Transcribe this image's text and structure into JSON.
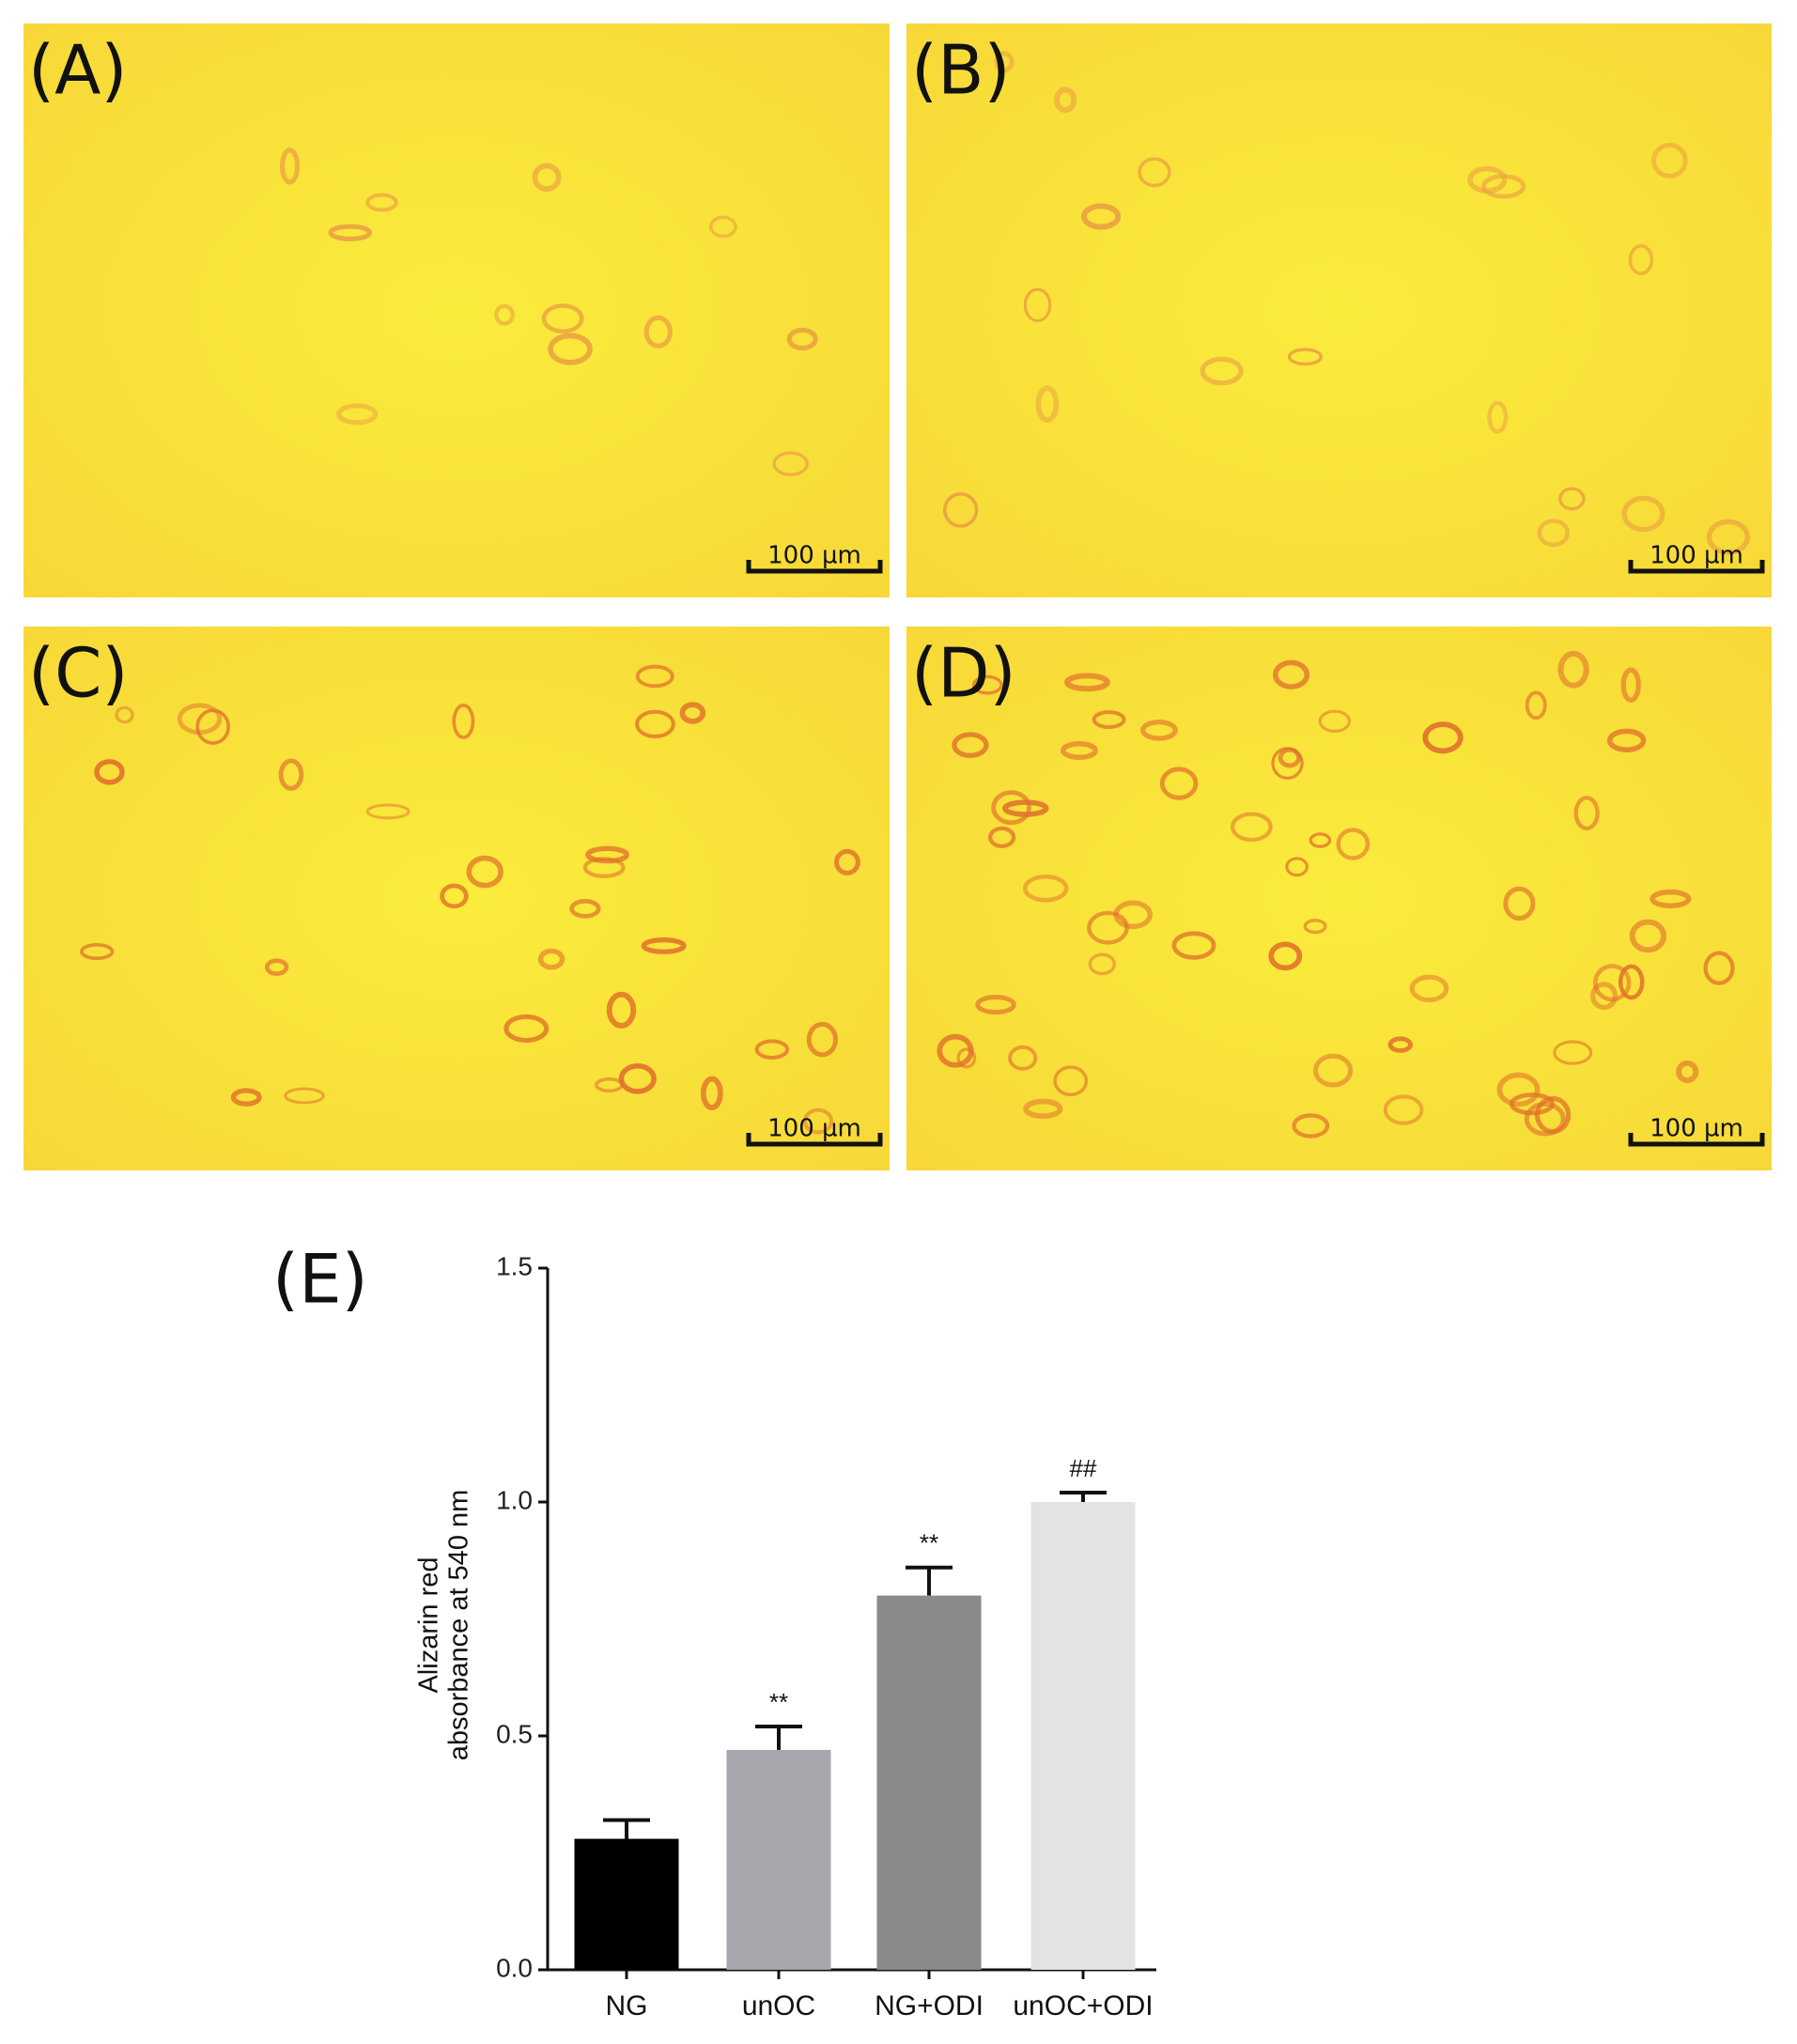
{
  "panels": [
    {
      "label": "(A)",
      "scale_bar": "100 µm"
    },
    {
      "label": "(B)",
      "scale_bar": "100 µm"
    },
    {
      "label": "(C)",
      "scale_bar": "100 µm"
    },
    {
      "label": "(D)",
      "scale_bar": "100 µm"
    }
  ],
  "chart_data": {
    "type": "bar",
    "panel_label": "(E)",
    "y_label": [
      "Alizarin red",
      "absorbance at 540 nm"
    ],
    "categories": [
      "NG",
      "unOC",
      "NG+ODI",
      "unOC+ODI"
    ],
    "values": [
      0.28,
      0.47,
      0.8,
      1.0
    ],
    "errors": [
      0.04,
      0.05,
      0.06,
      0.02
    ],
    "annotations": [
      null,
      "**",
      "**",
      "##"
    ],
    "colors": [
      "#000000",
      "#a6a6ad",
      "#8a8a8a",
      "#e3e3e3"
    ],
    "ylim": [
      0,
      1.5
    ],
    "yticks": [
      {
        "value": 0,
        "label": "0.0"
      },
      0.5,
      {
        "value": 1,
        "label": "1.0"
      },
      1.5
    ]
  }
}
